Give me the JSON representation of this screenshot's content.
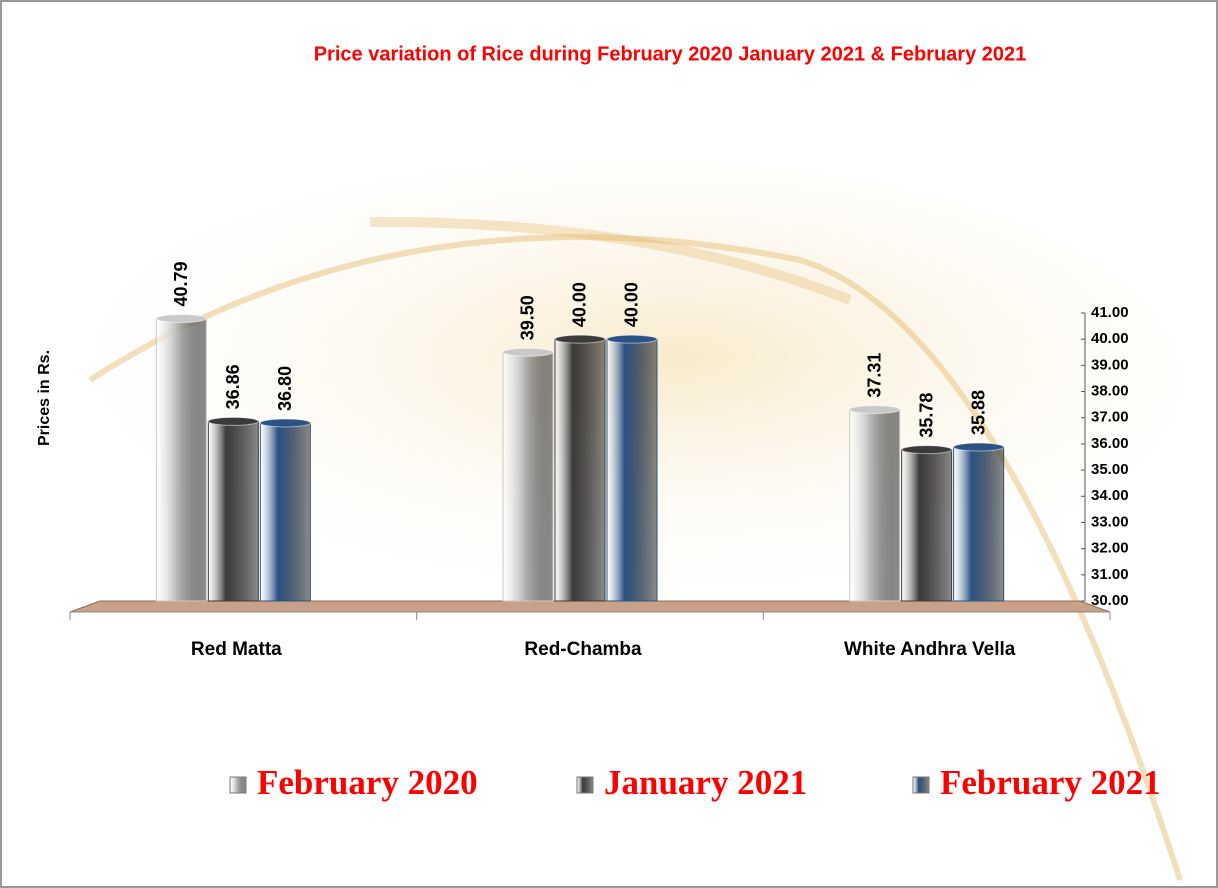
{
  "chart_data": {
    "type": "bar",
    "title": "Price variation of Rice during  February  2020  January 2021  &  February 2021",
    "y_label": "Prices in Rs.",
    "categories": [
      "Red Matta",
      "Red-Chamba",
      "White Andhra Vella"
    ],
    "series": [
      {
        "name": "February 2020",
        "color": "#c9c9c9",
        "values": [
          40.79,
          39.5,
          37.31
        ],
        "value_labels": [
          "40.79",
          "39.50",
          "37.31"
        ]
      },
      {
        "name": "January 2021",
        "color": "#3b3b3b",
        "values": [
          36.86,
          40,
          35.78
        ],
        "value_labels": [
          "36.86",
          "40.00",
          "35.78"
        ]
      },
      {
        "name": "February 2021",
        "color": "#2a5285",
        "values": [
          36.8,
          40,
          35.88
        ],
        "value_labels": [
          "36.80",
          "40.00",
          "35.88"
        ]
      }
    ],
    "ylim": [
      30,
      41
    ],
    "yticks": [
      {
        "value": 30,
        "label": "30.00"
      },
      {
        "value": 31,
        "label": "31.00"
      },
      {
        "value": 32,
        "label": "32.00"
      },
      {
        "value": 33,
        "label": "33.00"
      },
      {
        "value": 34,
        "label": "34.00"
      },
      {
        "value": 35,
        "label": "35.00"
      },
      {
        "value": 36,
        "label": "36.00"
      },
      {
        "value": 37,
        "label": "37.00"
      },
      {
        "value": 38,
        "label": "38.00"
      },
      {
        "value": 39,
        "label": "39.00"
      },
      {
        "value": 40,
        "label": "40.00"
      },
      {
        "value": 41,
        "label": "41.00"
      }
    ],
    "legend": "bottom"
  }
}
